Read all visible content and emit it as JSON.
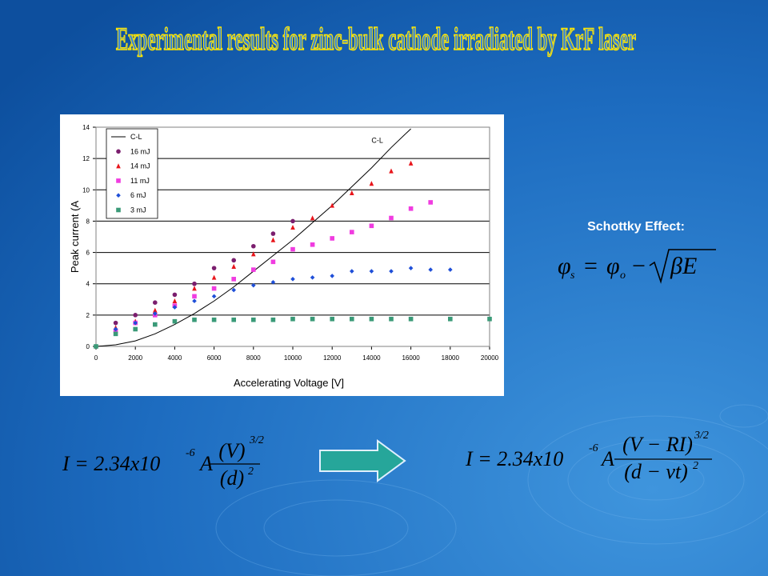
{
  "title": "Experimental results for zinc-bulk cathode irradiated by KrF laser",
  "side_label": "Schottky Effect:",
  "schottky_equation": {
    "lhs": "φ",
    "lhs_sub": "s",
    "equals": "=",
    "rhs": "φ",
    "rhs_sub": "o",
    "minus": "−",
    "radicand": "βE"
  },
  "equation_before": {
    "lhs": "I = 2.34x10",
    "exponent": "-6",
    "factor": "A",
    "numerator": "(V)",
    "numerator_power": "3/2",
    "denominator": "(d)",
    "denominator_power": "2"
  },
  "equation_after": {
    "lhs": "I = 2.34x10",
    "exponent": "-6",
    "factor": "A",
    "numerator": "(V − RI)",
    "numerator_power": "3/2",
    "denominator": "(d − vt)",
    "denominator_power": "2"
  },
  "chart_data": {
    "type": "scatter",
    "xlabel": "Accelerating Voltage [V]",
    "ylabel": "Peak current (A",
    "xlim": [
      0,
      20000
    ],
    "ylim": [
      0,
      14
    ],
    "xticks": [
      0,
      2000,
      4000,
      6000,
      8000,
      10000,
      12000,
      14000,
      16000,
      18000,
      20000
    ],
    "yticks": [
      0,
      2,
      4,
      6,
      8,
      10,
      12,
      14
    ],
    "grid": true,
    "legend": "upper left",
    "series": [
      {
        "name": "C-L",
        "type": "line",
        "color": "#000000",
        "x": [
          0,
          1000,
          2000,
          3000,
          4000,
          5000,
          6000,
          7000,
          8000,
          9000,
          10000,
          11000,
          12000,
          13000,
          14000,
          15000,
          16000
        ],
        "values": [
          0,
          0.1,
          0.35,
          0.8,
          1.4,
          2.1,
          2.9,
          3.8,
          4.8,
          5.8,
          6.8,
          7.9,
          9.0,
          10.2,
          11.4,
          12.7,
          13.9
        ]
      },
      {
        "name": "16 mJ",
        "marker": "circle",
        "color": "#7b1e6e",
        "x": [
          1000,
          2000,
          3000,
          4000,
          5000,
          6000,
          7000,
          8000,
          9000,
          10000
        ],
        "values": [
          1.5,
          2.0,
          2.8,
          3.3,
          4.0,
          5.0,
          5.5,
          6.4,
          7.2,
          8.0
        ]
      },
      {
        "name": "14 mJ",
        "marker": "triangle",
        "color": "#e8151b",
        "x": [
          1000,
          2000,
          3000,
          4000,
          5000,
          6000,
          7000,
          8000,
          9000,
          10000,
          11000,
          12000,
          13000,
          14000,
          15000,
          16000
        ],
        "values": [
          1.2,
          1.6,
          2.3,
          2.9,
          3.7,
          4.4,
          5.1,
          5.9,
          6.8,
          7.6,
          8.2,
          9.0,
          9.8,
          10.4,
          11.2,
          11.7
        ]
      },
      {
        "name": "11 mJ",
        "marker": "square",
        "color": "#f03ce0",
        "x": [
          1000,
          2000,
          3000,
          4000,
          5000,
          6000,
          7000,
          8000,
          9000,
          10000,
          11000,
          12000,
          13000,
          14000,
          15000,
          16000,
          17000
        ],
        "values": [
          1.0,
          1.5,
          2.0,
          2.6,
          3.2,
          3.7,
          4.3,
          4.9,
          5.4,
          6.2,
          6.5,
          6.9,
          7.3,
          7.7,
          8.2,
          8.8,
          9.2
        ]
      },
      {
        "name": "6 mJ",
        "marker": "diamond",
        "color": "#1f4fd8",
        "x": [
          1000,
          2000,
          3000,
          4000,
          5000,
          6000,
          7000,
          8000,
          9000,
          10000,
          11000,
          12000,
          13000,
          14000,
          15000,
          16000,
          17000,
          18000
        ],
        "values": [
          1.1,
          1.5,
          2.1,
          2.5,
          2.9,
          3.2,
          3.6,
          3.9,
          4.1,
          4.3,
          4.4,
          4.5,
          4.8,
          4.8,
          4.8,
          5.0,
          4.9,
          4.9
        ]
      },
      {
        "name": "3 mJ",
        "marker": "square",
        "color": "#3a9a78",
        "x": [
          0,
          1000,
          2000,
          3000,
          4000,
          5000,
          6000,
          7000,
          8000,
          9000,
          10000,
          11000,
          12000,
          13000,
          14000,
          15000,
          16000,
          18000,
          20000
        ],
        "values": [
          0,
          0.8,
          1.1,
          1.4,
          1.6,
          1.7,
          1.7,
          1.7,
          1.7,
          1.7,
          1.75,
          1.75,
          1.75,
          1.75,
          1.75,
          1.75,
          1.75,
          1.75,
          1.75
        ]
      }
    ],
    "annotations": [
      {
        "text": "C-L",
        "x": 14000,
        "y": 13
      }
    ]
  }
}
